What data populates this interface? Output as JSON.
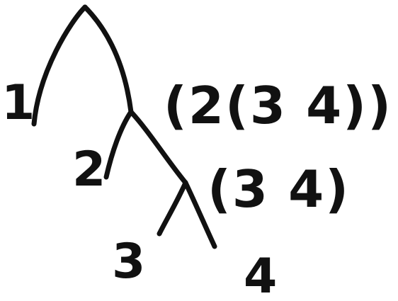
{
  "diagram": {
    "leaves": {
      "one": "1",
      "two": "2",
      "three": "3",
      "four": "4"
    },
    "expressions": {
      "full": "(2(3 4))",
      "inner": "(3 4)"
    },
    "ink_color": "#111111"
  }
}
